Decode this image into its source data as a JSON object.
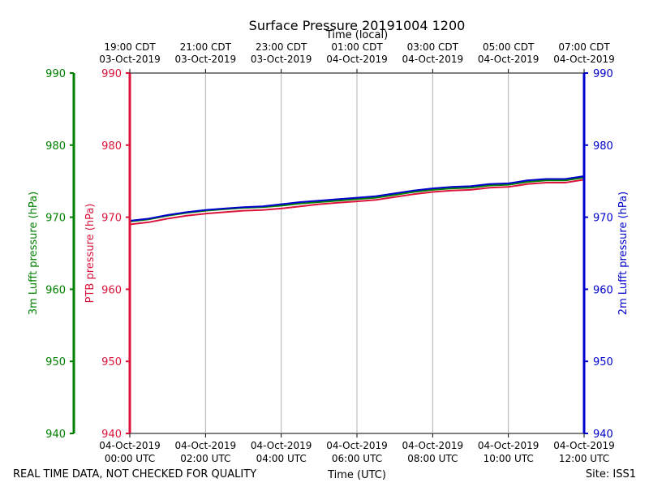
{
  "chart_data": {
    "type": "line",
    "title": "Surface Pressure 20191004 1200",
    "xlabel_bottom": "Time (UTC)",
    "xlabel_top": "Time (local)",
    "ylabel_left_outer": "3m Lufft pressure (hPa)",
    "ylabel_left_inner": "PTB pressure (hPa)",
    "ylabel_right": "2m Lufft pressure (hPa)",
    "ylim": [
      940,
      990
    ],
    "yticks": [
      940,
      950,
      960,
      970,
      980,
      990
    ],
    "xlim_hours": [
      0,
      12
    ],
    "grid": true,
    "x_bottom_ticks": [
      {
        "hour": 0,
        "line1": "04-Oct-2019",
        "line2": "00:00 UTC"
      },
      {
        "hour": 2,
        "line1": "04-Oct-2019",
        "line2": "02:00 UTC"
      },
      {
        "hour": 4,
        "line1": "04-Oct-2019",
        "line2": "04:00 UTC"
      },
      {
        "hour": 6,
        "line1": "04-Oct-2019",
        "line2": "06:00 UTC"
      },
      {
        "hour": 8,
        "line1": "04-Oct-2019",
        "line2": "08:00 UTC"
      },
      {
        "hour": 10,
        "line1": "04-Oct-2019",
        "line2": "10:00 UTC"
      },
      {
        "hour": 12,
        "line1": "04-Oct-2019",
        "line2": "12:00 UTC"
      }
    ],
    "x_top_ticks": [
      {
        "hour": 0,
        "line1": "19:00 CDT",
        "line2": "03-Oct-2019"
      },
      {
        "hour": 2,
        "line1": "21:00 CDT",
        "line2": "03-Oct-2019"
      },
      {
        "hour": 4,
        "line1": "23:00 CDT",
        "line2": "03-Oct-2019"
      },
      {
        "hour": 6,
        "line1": "01:00 CDT",
        "line2": "04-Oct-2019"
      },
      {
        "hour": 8,
        "line1": "03:00 CDT",
        "line2": "04-Oct-2019"
      },
      {
        "hour": 10,
        "line1": "05:00 CDT",
        "line2": "04-Oct-2019"
      },
      {
        "hour": 12,
        "line1": "07:00 CDT",
        "line2": "04-Oct-2019"
      }
    ],
    "series": [
      {
        "name": "3m Lufft pressure",
        "color": "#008000",
        "x": [
          0,
          0.5,
          1,
          1.5,
          2,
          2.5,
          3,
          3.5,
          4,
          4.5,
          5,
          5.5,
          6,
          6.5,
          7,
          7.5,
          8,
          8.5,
          9,
          9.5,
          10,
          10.5,
          11,
          11.5,
          12
        ],
        "values": [
          969.4,
          969.7,
          970.2,
          970.6,
          970.9,
          971.1,
          971.3,
          971.4,
          971.6,
          971.9,
          972.1,
          972.3,
          972.5,
          972.7,
          973.1,
          973.5,
          973.8,
          974.0,
          974.1,
          974.4,
          974.5,
          974.9,
          975.1,
          975.1,
          975.5
        ]
      },
      {
        "name": "PTB pressure",
        "color": "#dc143c",
        "x": [
          0,
          0.5,
          1,
          1.5,
          2,
          2.5,
          3,
          3.5,
          4,
          4.5,
          5,
          5.5,
          6,
          6.5,
          7,
          7.5,
          8,
          8.5,
          9,
          9.5,
          10,
          10.5,
          11,
          11.5,
          12
        ],
        "values": [
          969.0,
          969.3,
          969.8,
          970.2,
          970.5,
          970.7,
          970.9,
          971.0,
          971.2,
          971.5,
          971.8,
          972.0,
          972.2,
          972.4,
          972.8,
          973.2,
          973.5,
          973.7,
          973.8,
          974.1,
          974.2,
          974.6,
          974.8,
          974.8,
          975.2
        ]
      },
      {
        "name": "2m Lufft pressure",
        "color": "#0000cc",
        "x": [
          0,
          0.5,
          1,
          1.5,
          2,
          2.5,
          3,
          3.5,
          4,
          4.5,
          5,
          5.5,
          6,
          6.5,
          7,
          7.5,
          8,
          8.5,
          9,
          9.5,
          10,
          10.5,
          11,
          11.5,
          12
        ],
        "values": [
          969.5,
          969.8,
          970.3,
          970.7,
          971.0,
          971.2,
          971.4,
          971.5,
          971.8,
          972.1,
          972.3,
          972.5,
          972.7,
          972.9,
          973.3,
          973.7,
          974.0,
          974.2,
          974.3,
          974.6,
          974.7,
          975.1,
          975.3,
          975.3,
          975.7
        ]
      }
    ],
    "axis_colors": {
      "left_outer": "#008000",
      "left_inner": "#dc143c",
      "right": "#0000cc"
    }
  },
  "footer": {
    "quality_note": "REAL TIME DATA, NOT CHECKED FOR QUALITY",
    "site": "Site: ISS1"
  }
}
